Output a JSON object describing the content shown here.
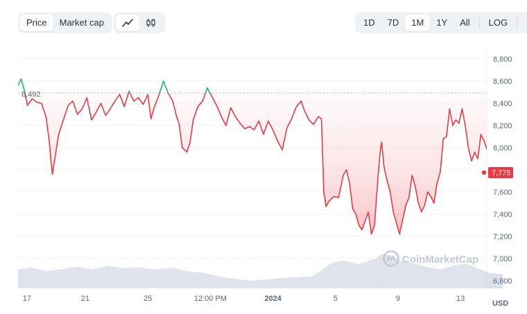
{
  "toolbar": {
    "metric_tabs": [
      {
        "label": "Price",
        "active": true
      },
      {
        "label": "Market cap",
        "active": false
      }
    ],
    "chart_type_icons": [
      {
        "icon": "line-chart-icon",
        "active": true
      },
      {
        "icon": "candlestick-icon",
        "active": false
      }
    ],
    "range_tabs": [
      {
        "label": "1D",
        "active": false
      },
      {
        "label": "7D",
        "active": false
      },
      {
        "label": "1M",
        "active": true
      },
      {
        "label": "1Y",
        "active": false
      },
      {
        "label": "All",
        "active": false
      }
    ],
    "log_label": "LOG",
    "download_icon": "download-icon"
  },
  "colors": {
    "up": "#16c784",
    "down": "#ea3943",
    "volume": "#cfd6e4",
    "grid": "#eff2f5",
    "axis_text": "#58667e"
  },
  "chart_data": {
    "type": "line",
    "title": "",
    "currency_label": "USD",
    "watermark": "CoinMarketCap",
    "open_price_label": "8,492",
    "current_price_label": "7,775",
    "open_price": 8492,
    "current_price": 7775,
    "y_ticks": [
      "8,800",
      "8,600",
      "8,400",
      "8,200",
      "8,000",
      "7,800",
      "7,600",
      "7,400",
      "7,200",
      "7,000",
      "6,800"
    ],
    "y_tick_values": [
      8800,
      8600,
      8400,
      8200,
      8000,
      7800,
      7600,
      7400,
      7200,
      7000,
      6800
    ],
    "ylim": [
      6750,
      8850
    ],
    "x_ticks": [
      {
        "label": "17",
        "t": 0.0,
        "bold": false
      },
      {
        "label": "21",
        "t": 4.0,
        "bold": false
      },
      {
        "label": "25",
        "t": 8.0,
        "bold": false
      },
      {
        "label": "12:00 PM",
        "t": 12.0,
        "bold": false
      },
      {
        "label": "2024",
        "t": 16.0,
        "bold": true
      },
      {
        "label": "5",
        "t": 20.0,
        "bold": false
      },
      {
        "label": "9",
        "t": 24.0,
        "bold": false
      },
      {
        "label": "13",
        "t": 28.0,
        "bold": false
      }
    ],
    "x_units": "days since first tick (Dec 17)",
    "xlim": [
      -0.3,
      29.5
    ],
    "price_points": [
      [
        -0.3,
        8560
      ],
      [
        -0.1,
        8620
      ],
      [
        0.1,
        8520
      ],
      [
        0.3,
        8380
      ],
      [
        0.6,
        8440
      ],
      [
        0.9,
        8410
      ],
      [
        1.2,
        8400
      ],
      [
        1.5,
        8270
      ],
      [
        1.7,
        8050
      ],
      [
        1.8,
        7880
      ],
      [
        1.9,
        7760
      ],
      [
        2.05,
        7900
      ],
      [
        2.3,
        8120
      ],
      [
        2.6,
        8250
      ],
      [
        2.9,
        8380
      ],
      [
        3.2,
        8420
      ],
      [
        3.5,
        8300
      ],
      [
        3.8,
        8350
      ],
      [
        4.1,
        8450
      ],
      [
        4.4,
        8250
      ],
      [
        4.7,
        8320
      ],
      [
        5.0,
        8400
      ],
      [
        5.3,
        8290
      ],
      [
        5.6,
        8350
      ],
      [
        5.9,
        8420
      ],
      [
        6.2,
        8480
      ],
      [
        6.5,
        8370
      ],
      [
        6.8,
        8510
      ],
      [
        7.1,
        8420
      ],
      [
        7.4,
        8450
      ],
      [
        7.7,
        8390
      ],
      [
        8.0,
        8480
      ],
      [
        8.2,
        8260
      ],
      [
        8.4,
        8360
      ],
      [
        8.7,
        8470
      ],
      [
        9.0,
        8600
      ],
      [
        9.3,
        8490
      ],
      [
        9.6,
        8420
      ],
      [
        9.8,
        8300
      ],
      [
        10.0,
        8210
      ],
      [
        10.2,
        8000
      ],
      [
        10.5,
        7960
      ],
      [
        10.7,
        8050
      ],
      [
        10.9,
        8250
      ],
      [
        11.2,
        8370
      ],
      [
        11.5,
        8420
      ],
      [
        11.8,
        8540
      ],
      [
        12.1,
        8460
      ],
      [
        12.4,
        8380
      ],
      [
        12.7,
        8280
      ],
      [
        13.0,
        8200
      ],
      [
        13.3,
        8360
      ],
      [
        13.6,
        8280
      ],
      [
        13.9,
        8220
      ],
      [
        14.2,
        8170
      ],
      [
        14.5,
        8190
      ],
      [
        14.8,
        8160
      ],
      [
        15.1,
        8240
      ],
      [
        15.4,
        8120
      ],
      [
        15.7,
        8240
      ],
      [
        16.0,
        8160
      ],
      [
        16.3,
        8060
      ],
      [
        16.6,
        7980
      ],
      [
        16.9,
        8180
      ],
      [
        17.2,
        8260
      ],
      [
        17.5,
        8370
      ],
      [
        17.8,
        8420
      ],
      [
        18.0,
        8340
      ],
      [
        18.3,
        8250
      ],
      [
        18.6,
        8210
      ],
      [
        18.9,
        8280
      ],
      [
        19.1,
        8260
      ],
      [
        19.25,
        7600
      ],
      [
        19.4,
        7470
      ],
      [
        19.6,
        7520
      ],
      [
        19.9,
        7560
      ],
      [
        20.2,
        7550
      ],
      [
        20.5,
        7750
      ],
      [
        20.7,
        7800
      ],
      [
        20.9,
        7680
      ],
      [
        21.1,
        7450
      ],
      [
        21.3,
        7400
      ],
      [
        21.5,
        7300
      ],
      [
        21.7,
        7260
      ],
      [
        21.9,
        7340
      ],
      [
        22.1,
        7420
      ],
      [
        22.3,
        7220
      ],
      [
        22.5,
        7300
      ],
      [
        22.7,
        7700
      ],
      [
        22.85,
        7950
      ],
      [
        22.95,
        8050
      ],
      [
        23.1,
        7830
      ],
      [
        23.3,
        7700
      ],
      [
        23.5,
        7600
      ],
      [
        23.7,
        7420
      ],
      [
        23.9,
        7320
      ],
      [
        24.1,
        7220
      ],
      [
        24.3,
        7350
      ],
      [
        24.5,
        7480
      ],
      [
        24.7,
        7550
      ],
      [
        24.9,
        7750
      ],
      [
        25.1,
        7650
      ],
      [
        25.3,
        7500
      ],
      [
        25.5,
        7420
      ],
      [
        25.7,
        7480
      ],
      [
        25.9,
        7600
      ],
      [
        26.1,
        7560
      ],
      [
        26.3,
        7500
      ],
      [
        26.5,
        7680
      ],
      [
        26.7,
        7780
      ],
      [
        26.9,
        8080
      ],
      [
        27.1,
        8100
      ],
      [
        27.3,
        8350
      ],
      [
        27.5,
        8200
      ],
      [
        27.7,
        8250
      ],
      [
        27.9,
        8220
      ],
      [
        28.1,
        8350
      ],
      [
        28.3,
        8200
      ],
      [
        28.5,
        8000
      ],
      [
        28.7,
        7880
      ],
      [
        28.9,
        7960
      ],
      [
        29.1,
        7900
      ],
      [
        29.3,
        8120
      ],
      [
        29.5,
        8060
      ],
      [
        29.7,
        7980
      ],
      [
        29.9,
        8010
      ],
      [
        30.1,
        7880
      ],
      [
        30.3,
        7960
      ],
      [
        30.5,
        7900
      ],
      [
        30.7,
        7810
      ]
    ],
    "volume_points": [
      [
        -0.3,
        0.55
      ],
      [
        0.5,
        0.6
      ],
      [
        1.5,
        0.5
      ],
      [
        2.5,
        0.55
      ],
      [
        3.5,
        0.62
      ],
      [
        4.5,
        0.55
      ],
      [
        5.5,
        0.65
      ],
      [
        6.5,
        0.58
      ],
      [
        7.5,
        0.6
      ],
      [
        8.5,
        0.55
      ],
      [
        9.5,
        0.6
      ],
      [
        10.5,
        0.5
      ],
      [
        11.5,
        0.45
      ],
      [
        12.5,
        0.35
      ],
      [
        13.5,
        0.28
      ],
      [
        14.5,
        0.22
      ],
      [
        15.5,
        0.25
      ],
      [
        16.5,
        0.3
      ],
      [
        17.5,
        0.32
      ],
      [
        18.5,
        0.35
      ],
      [
        19.2,
        0.55
      ],
      [
        19.8,
        0.75
      ],
      [
        20.5,
        0.8
      ],
      [
        21.5,
        0.7
      ],
      [
        22.5,
        0.85
      ],
      [
        23.0,
        1.0
      ],
      [
        23.6,
        0.95
      ],
      [
        24.2,
        0.8
      ],
      [
        25.0,
        0.72
      ],
      [
        26.0,
        0.6
      ],
      [
        26.8,
        0.55
      ],
      [
        27.5,
        0.65
      ],
      [
        28.3,
        0.72
      ],
      [
        29.0,
        0.6
      ],
      [
        29.8,
        0.45
      ],
      [
        30.7,
        0.4
      ]
    ]
  }
}
